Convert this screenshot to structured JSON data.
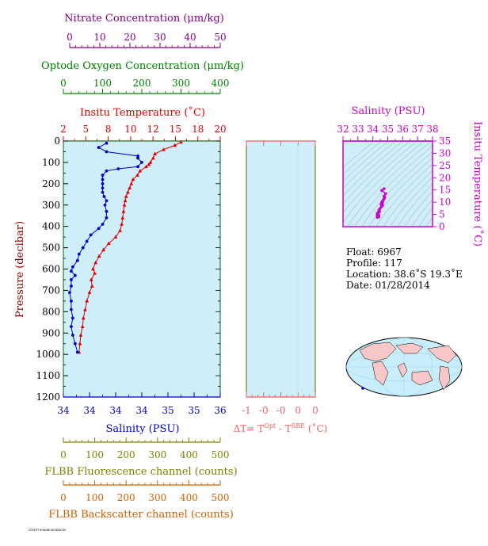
{
  "colors": {
    "nitrate": "#800080",
    "oxygen": "#008000",
    "temperature": "#e00000",
    "salinity": "#0000c8",
    "delta_t": "#ee6060",
    "fluorescence": "#808000",
    "backscatter": "#d06000",
    "ts_axis": "#cc00cc",
    "plot_bg": "#cfeefa"
  },
  "axes": {
    "nitrate": {
      "label": "Nitrate Concentration (μm/kg)",
      "ticks": [
        "0",
        "10",
        "20",
        "30",
        "40",
        "50"
      ]
    },
    "oxygen": {
      "label": "Optode Oxygen Concentration (μm/kg)",
      "ticks": [
        "0",
        "100",
        "200",
        "300",
        "400"
      ]
    },
    "temperature": {
      "label": "Insitu Temperature (˚C)",
      "ticks": [
        "2",
        "5",
        "8",
        "10",
        "12",
        "15",
        "18",
        "20"
      ]
    },
    "pressure": {
      "label": "Pressure (decibar)",
      "ticks": [
        "0",
        "100",
        "200",
        "300",
        "400",
        "500",
        "600",
        "700",
        "800",
        "900",
        "1000",
        "1100",
        "1200"
      ]
    },
    "salinity": {
      "label": "Salinity (PSU)",
      "ticks": [
        "34",
        "34",
        "34",
        "34",
        "35",
        "35",
        "36"
      ]
    },
    "delta_t": {
      "label_main": "ΔT= T",
      "sup1": "Opt",
      "label_mid": " - T",
      "sup2": "SBE",
      "label_end": " (˚C)",
      "ticks": [
        "-1",
        "-0",
        "-0",
        "0",
        "0"
      ]
    },
    "fluorescence": {
      "label": "FLBB Fluorescence channel (counts)",
      "ticks": [
        "0",
        "100",
        "200",
        "300",
        "400",
        "500"
      ]
    },
    "backscatter": {
      "label": "FLBB Backscatter channel (counts)",
      "ticks": [
        "0",
        "100",
        "200",
        "300",
        "400",
        "500"
      ]
    },
    "ts_salinity": {
      "label": "Salinity (PSU)",
      "ticks": [
        "32",
        "33",
        "34",
        "35",
        "36",
        "37",
        "38"
      ]
    },
    "ts_temperature": {
      "label": "Insitu Temperature (˚C)",
      "ticks": [
        "0",
        "5",
        "10",
        "15",
        "20",
        "25",
        "30",
        "35"
      ]
    }
  },
  "float_info": {
    "float": "Float:  6967",
    "profile": "Profile:  117",
    "location": "Location:  38.6˚S  19.3˚E",
    "date": "Date:  01/28/2014"
  },
  "footer_mark": "ITMP79966B.ROKKOH",
  "chart_data": [
    {
      "type": "line",
      "name_ref": "temperature_profile",
      "x_unit": "˚C",
      "y_unit": "decibar",
      "xlim": [
        2,
        20
      ],
      "ylim": [
        1200,
        0
      ],
      "points": [
        [
          15.5,
          5
        ],
        [
          14.8,
          20
        ],
        [
          13.5,
          40
        ],
        [
          12.5,
          60
        ],
        [
          12.3,
          80
        ],
        [
          12.0,
          100
        ],
        [
          11.8,
          110
        ],
        [
          11.5,
          120
        ],
        [
          10.8,
          140
        ],
        [
          10.5,
          160
        ],
        [
          10.0,
          180
        ],
        [
          9.8,
          200
        ],
        [
          9.6,
          220
        ],
        [
          9.4,
          240
        ],
        [
          9.2,
          260
        ],
        [
          9.1,
          280
        ],
        [
          9.0,
          300
        ],
        [
          8.9,
          330
        ],
        [
          8.8,
          360
        ],
        [
          8.7,
          390
        ],
        [
          8.5,
          420
        ],
        [
          8.0,
          450
        ],
        [
          7.2,
          480
        ],
        [
          6.6,
          510
        ],
        [
          6.1,
          540
        ],
        [
          5.7,
          570
        ],
        [
          5.4,
          600
        ],
        [
          5.6,
          620
        ],
        [
          5.2,
          650
        ],
        [
          5.3,
          680
        ],
        [
          5.0,
          710
        ],
        [
          4.7,
          750
        ],
        [
          4.5,
          790
        ],
        [
          4.3,
          830
        ],
        [
          4.2,
          870
        ],
        [
          4.0,
          910
        ],
        [
          3.9,
          950
        ],
        [
          3.8,
          990
        ]
      ]
    },
    {
      "type": "line",
      "name_ref": "salinity_profile",
      "x_unit": "PSU",
      "y_unit": "decibar",
      "xlim": [
        34.0,
        36.0
      ],
      "ylim": [
        1200,
        0
      ],
      "points": [
        [
          34.55,
          10
        ],
        [
          34.45,
          30
        ],
        [
          34.55,
          50
        ],
        [
          34.95,
          70
        ],
        [
          34.95,
          80
        ],
        [
          35.0,
          100
        ],
        [
          34.95,
          120
        ],
        [
          34.7,
          130
        ],
        [
          34.55,
          140
        ],
        [
          34.5,
          160
        ],
        [
          34.5,
          180
        ],
        [
          34.5,
          200
        ],
        [
          34.5,
          220
        ],
        [
          34.5,
          240
        ],
        [
          34.52,
          260
        ],
        [
          34.55,
          280
        ],
        [
          34.53,
          300
        ],
        [
          34.55,
          330
        ],
        [
          34.55,
          360
        ],
        [
          34.5,
          390
        ],
        [
          34.45,
          410
        ],
        [
          34.35,
          440
        ],
        [
          34.3,
          470
        ],
        [
          34.25,
          500
        ],
        [
          34.2,
          530
        ],
        [
          34.18,
          560
        ],
        [
          34.12,
          590
        ],
        [
          34.1,
          610
        ],
        [
          34.15,
          630
        ],
        [
          34.1,
          650
        ],
        [
          34.1,
          680
        ],
        [
          34.08,
          710
        ],
        [
          34.1,
          750
        ],
        [
          34.1,
          790
        ],
        [
          34.12,
          830
        ],
        [
          34.1,
          870
        ],
        [
          34.12,
          910
        ],
        [
          34.15,
          950
        ],
        [
          34.18,
          990
        ]
      ]
    },
    {
      "type": "scatter",
      "name_ref": "ts_diagram",
      "x_unit": "PSU",
      "y_unit": "˚C",
      "xlim": [
        32,
        38
      ],
      "ylim": [
        0,
        35
      ],
      "points": [
        [
          34.75,
          15.5
        ],
        [
          34.6,
          14.8
        ],
        [
          34.85,
          13.5
        ],
        [
          34.75,
          12.5
        ],
        [
          34.8,
          12.0
        ],
        [
          34.75,
          11.5
        ],
        [
          34.7,
          10.8
        ],
        [
          34.65,
          10.5
        ],
        [
          34.6,
          10.0
        ],
        [
          34.65,
          9.8
        ],
        [
          34.6,
          9.6
        ],
        [
          34.55,
          9.2
        ],
        [
          34.6,
          9.0
        ],
        [
          34.65,
          8.8
        ],
        [
          34.6,
          8.5
        ],
        [
          34.55,
          8.0
        ],
        [
          34.45,
          7.2
        ],
        [
          34.4,
          6.6
        ],
        [
          34.45,
          6.1
        ],
        [
          34.35,
          5.7
        ],
        [
          34.3,
          5.4
        ],
        [
          34.35,
          5.2
        ],
        [
          34.3,
          5.0
        ],
        [
          34.4,
          4.7
        ],
        [
          34.3,
          4.5
        ],
        [
          34.35,
          4.3
        ],
        [
          34.4,
          4.0
        ],
        [
          34.3,
          3.8
        ]
      ]
    }
  ]
}
